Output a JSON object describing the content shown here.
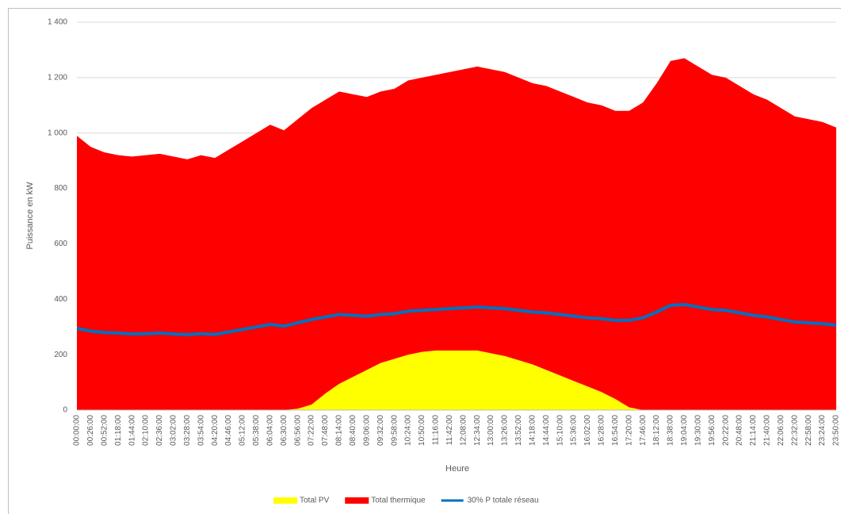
{
  "chart_data": {
    "type": "stacked_area",
    "y_label": "Puissance en kW",
    "x_label": "Heure",
    "categories": [
      "00:00:00",
      "00:26:00",
      "00:52:00",
      "01:18:00",
      "01:44:00",
      "02:10:00",
      "02:36:00",
      "03:02:00",
      "03:28:00",
      "03:54:00",
      "04:20:00",
      "04:46:00",
      "05:12:00",
      "05:38:00",
      "06:04:00",
      "06:30:00",
      "06:56:00",
      "07:22:00",
      "07:48:00",
      "08:14:00",
      "08:40:00",
      "09:06:00",
      "09:32:00",
      "09:58:00",
      "10:24:00",
      "10:50:00",
      "11:16:00",
      "11:42:00",
      "12:08:00",
      "12:34:00",
      "13:00:00",
      "13:26:00",
      "13:52:00",
      "14:18:00",
      "14:44:00",
      "15:10:00",
      "15:36:00",
      "16:02:00",
      "16:28:00",
      "16:54:00",
      "17:20:00",
      "17:46:00",
      "18:12:00",
      "18:38:00",
      "19:04:00",
      "19:30:00",
      "19:56:00",
      "20:22:00",
      "20:48:00",
      "21:14:00",
      "21:40:00",
      "22:06:00",
      "22:32:00",
      "22:58:00",
      "23:24:00",
      "23:50:00"
    ],
    "series": [
      {
        "name": "Total PV",
        "color": "#ffff00",
        "kind": "area",
        "values": [
          0,
          0,
          0,
          0,
          0,
          0,
          0,
          0,
          0,
          0,
          0,
          0,
          0,
          0,
          0,
          0,
          5,
          20,
          60,
          95,
          120,
          145,
          170,
          185,
          200,
          210,
          215,
          215,
          215,
          215,
          205,
          195,
          180,
          165,
          145,
          125,
          105,
          85,
          65,
          40,
          10,
          0,
          0,
          0,
          0,
          0,
          0,
          0,
          0,
          0,
          0,
          0,
          0,
          0,
          0,
          0
        ]
      },
      {
        "name": "Total thermique",
        "color": "#ff0000",
        "kind": "area",
        "values": [
          990,
          950,
          930,
          920,
          915,
          920,
          925,
          915,
          905,
          920,
          910,
          940,
          970,
          1000,
          1030,
          1010,
          1045,
          1070,
          1060,
          1055,
          1020,
          985,
          980,
          975,
          990,
          990,
          995,
          1005,
          1015,
          1025,
          1025,
          1025,
          1020,
          1015,
          1025,
          1025,
          1025,
          1025,
          1035,
          1040,
          1070,
          1110,
          1180,
          1260,
          1270,
          1240,
          1210,
          1200,
          1170,
          1140,
          1120,
          1090,
          1060,
          1050,
          1040,
          1020
        ]
      },
      {
        "name": "30% P totale réseau",
        "color": "#0070c0",
        "kind": "line",
        "values": [
          295,
          285,
          280,
          278,
          275,
          276,
          278,
          275,
          272,
          276,
          273,
          282,
          291,
          300,
          309,
          303,
          315,
          327,
          336,
          345,
          342,
          339,
          345,
          348,
          357,
          360,
          363,
          366,
          369,
          372,
          369,
          366,
          360,
          354,
          351,
          345,
          339,
          333,
          330,
          324,
          324,
          333,
          354,
          378,
          381,
          372,
          363,
          360,
          351,
          342,
          336,
          327,
          318,
          315,
          312,
          306
        ]
      }
    ],
    "ylim": [
      0,
      1400
    ],
    "yticks": [
      0,
      200,
      400,
      600,
      800,
      {
        "value": 1000,
        "label": "1 000"
      },
      {
        "value": 1200,
        "label": "1 200"
      },
      {
        "value": 1400,
        "label": "1 400"
      }
    ],
    "grid": true,
    "legend": "bottom"
  }
}
